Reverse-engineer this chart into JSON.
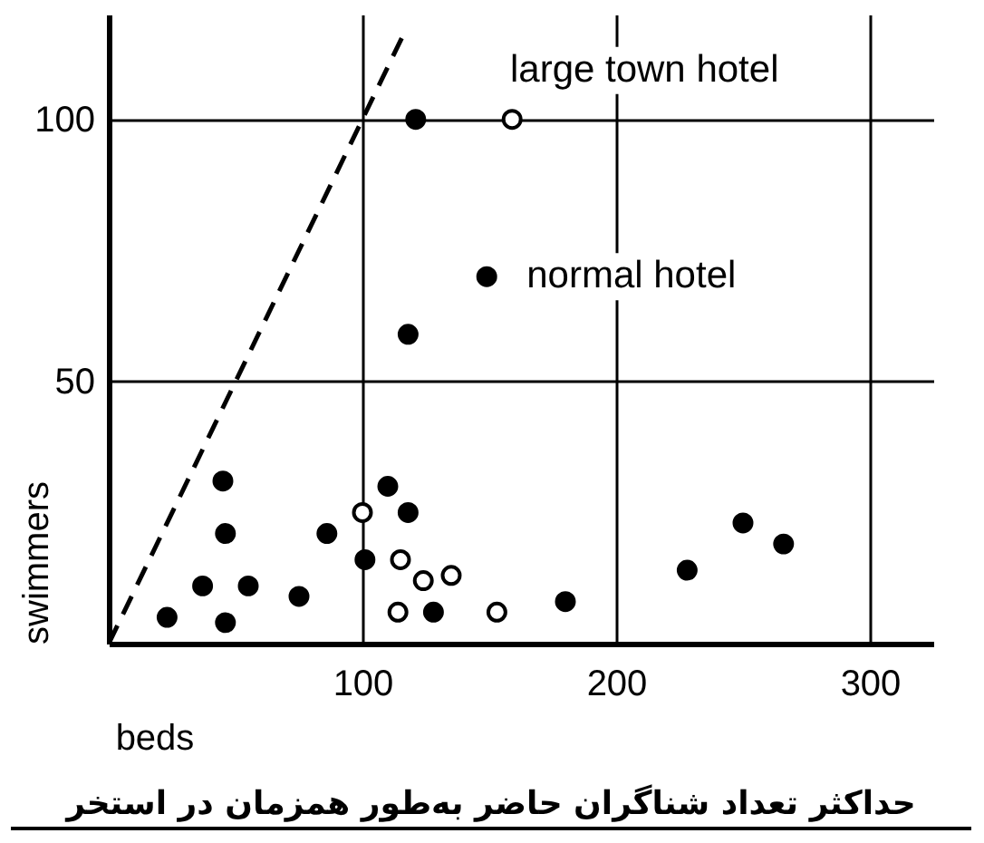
{
  "chart_data": {
    "type": "scatter",
    "xlabel": "beds",
    "ylabel": "swimmers",
    "xlim": [
      0,
      325
    ],
    "ylim": [
      0,
      120
    ],
    "xticks": [
      100,
      200,
      300
    ],
    "yticks": [
      50,
      100
    ],
    "grid": true,
    "line_style": "dashed",
    "series": [
      {
        "color": "#000000",
        "marker": "circle",
        "x": [
          45,
          46,
          37,
          55,
          23,
          46,
          86,
          75,
          110,
          118,
          101,
          128,
          180,
          228,
          250,
          266,
          121,
          149,
          118
        ],
        "values": [
          31,
          21,
          11,
          11,
          5,
          4,
          21,
          9,
          30,
          25,
          16,
          6,
          8,
          14,
          23,
          19,
          100,
          70,
          59
        ]
      },
      {
        "color": "#ffffff",
        "marker": "circle",
        "x": [
          100,
          115,
          124,
          135,
          114,
          153,
          159
        ],
        "values": [
          25,
          16,
          12,
          13,
          6,
          6,
          100
        ]
      },
      {
        "type": "line",
        "color": "#000000",
        "x": [
          0,
          116
        ],
        "values": [
          0,
          116
        ]
      }
    ],
    "annotations": [
      {
        "text": "large town hotel",
        "x": 159,
        "y": 100
      },
      {
        "text": "normal hotel",
        "x": 149,
        "y": 70
      },
      "حداکثر تعداد شناگران حاضر به‌طور همزمان در استخر"
    ]
  }
}
